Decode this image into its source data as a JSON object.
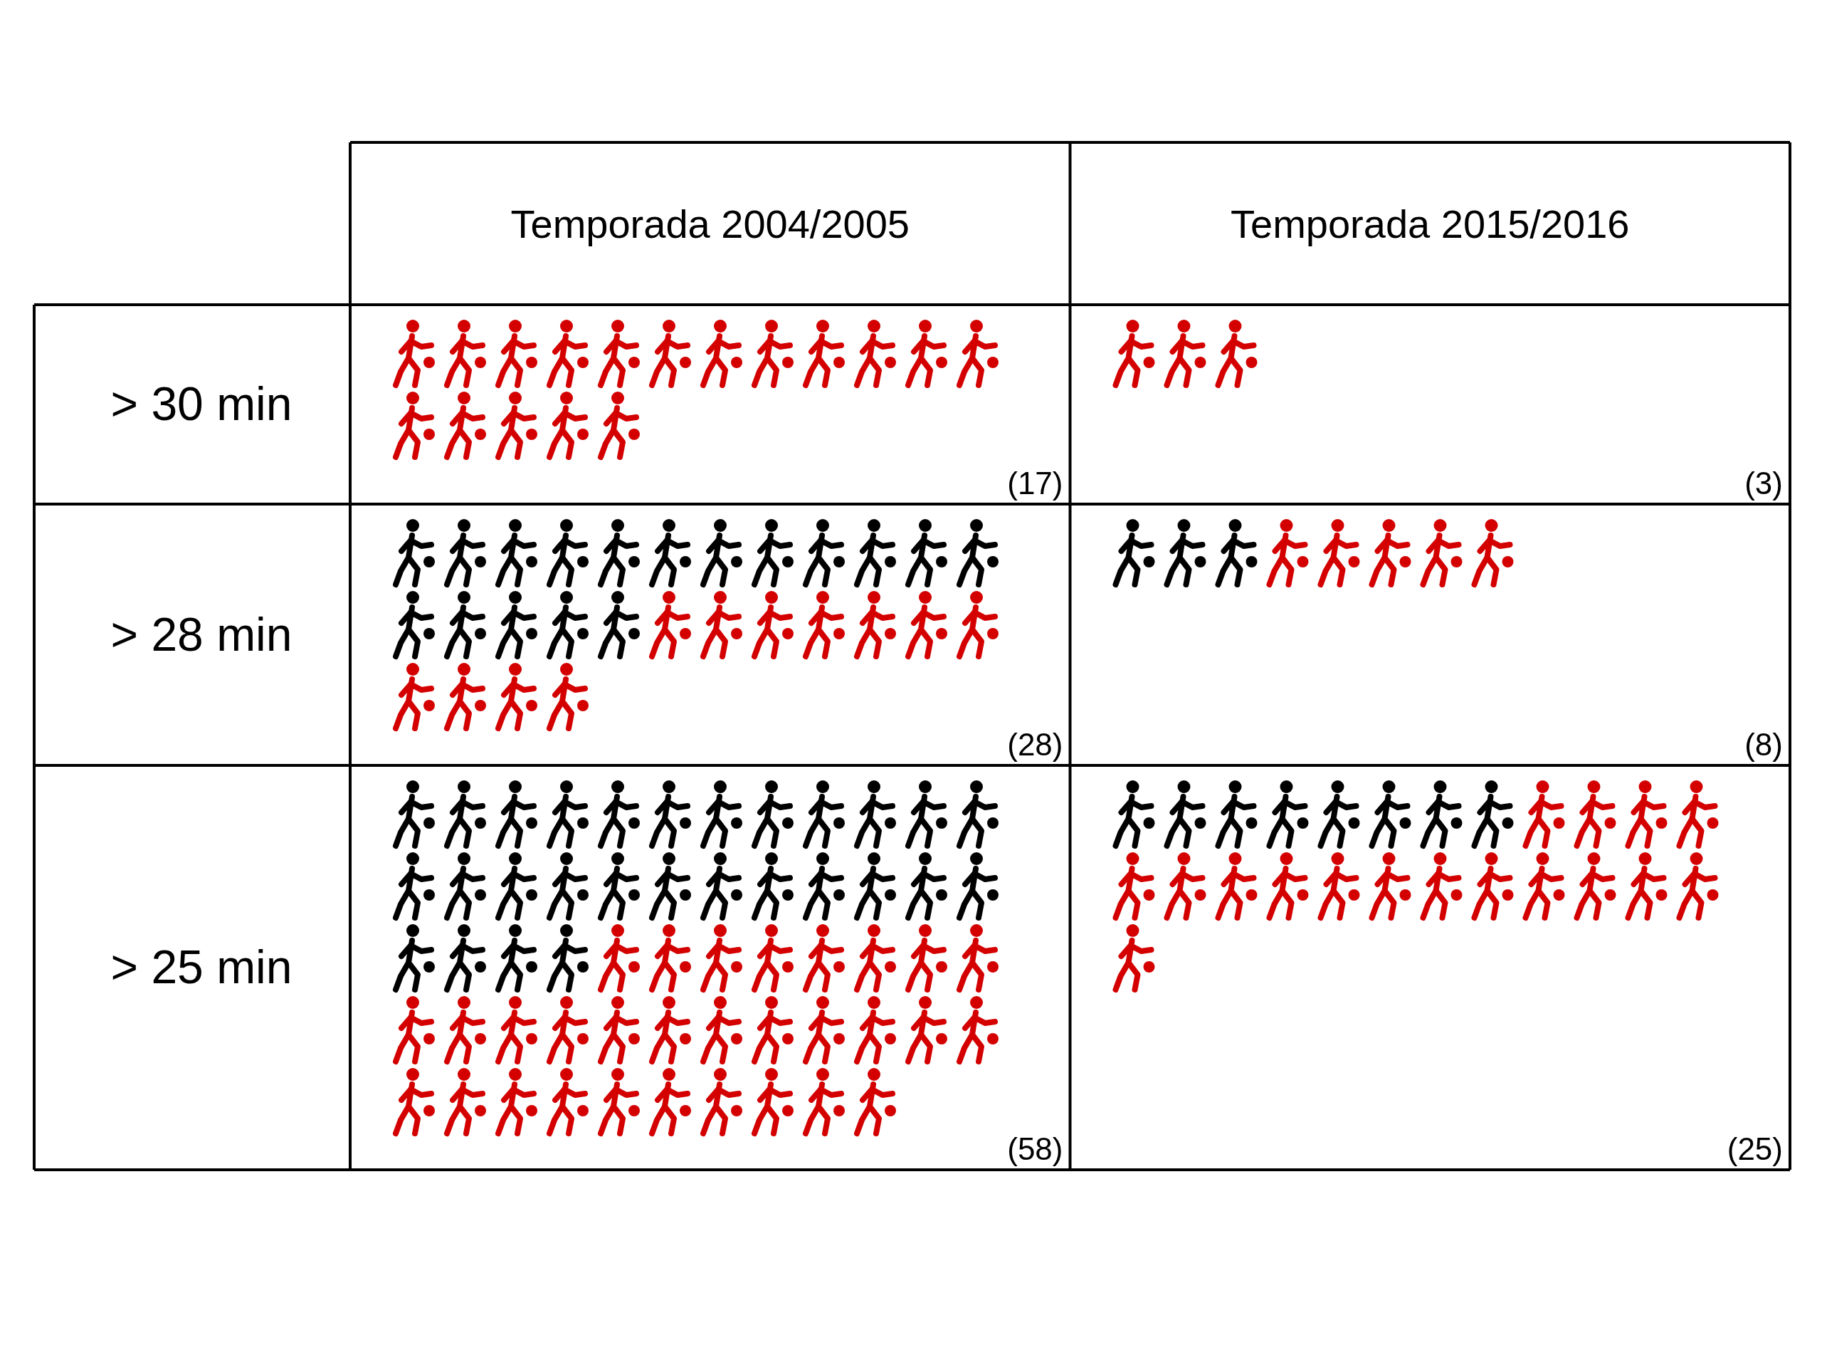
{
  "chart_data": {
    "type": "heatmap",
    "categories": [
      "Temporada 2004/2005",
      "Temporada 2015/2016"
    ],
    "y_categories": [
      "> 30 min",
      "> 28 min",
      "> 25 min"
    ],
    "cells": [
      [
        17,
        3
      ],
      [
        28,
        8
      ],
      [
        58,
        25
      ]
    ],
    "cell_labels": [
      [
        "(17)",
        "(3)"
      ],
      [
        "(28)",
        "(8)"
      ],
      [
        "(58)",
        "(25)"
      ]
    ],
    "colors": [
      "#d40000",
      "#000000"
    ]
  }
}
